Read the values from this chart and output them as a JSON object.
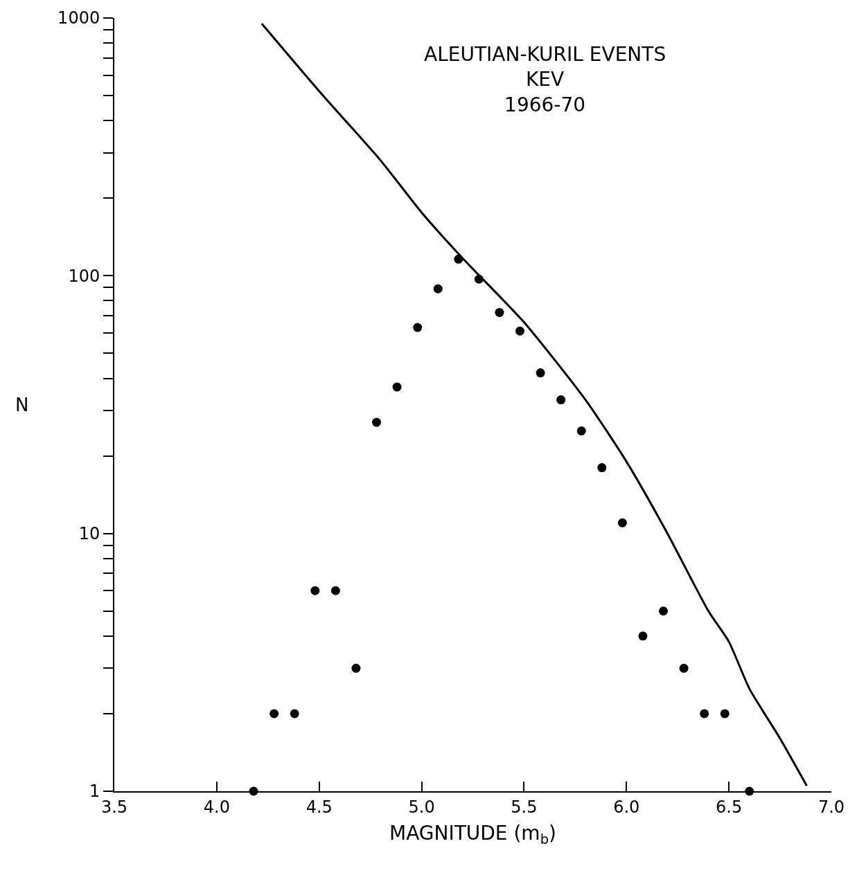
{
  "chart_data": {
    "type": "scatter",
    "title": "ALEUTIAN-KURIL EVENTS\nKEV\n1966-70",
    "xlabel": "MAGNITUDE (m$_{b}$)",
    "ylabel": "N",
    "log": "y",
    "marker": "circle",
    "series": [
      {
        "color": "#000000",
        "x": [
          4.18,
          4.28,
          4.38,
          4.48,
          4.58,
          4.68,
          4.78,
          4.88,
          4.98,
          5.08,
          5.18,
          5.28,
          5.38,
          5.48,
          5.58,
          5.68,
          5.78,
          5.88,
          5.98,
          6.08,
          6.18,
          6.28,
          6.38,
          6.48,
          6.6
        ],
        "values": [
          1,
          2,
          2,
          6,
          6,
          3,
          27,
          37,
          63,
          89,
          116,
          97,
          72,
          61,
          42,
          33,
          25,
          18,
          11,
          4,
          5,
          3,
          2,
          2,
          1
        ]
      },
      {
        "type": "line",
        "color": "#000000",
        "marker": "none",
        "line_style": "solid",
        "x": [
          4.22,
          4.5,
          4.8,
          5.0,
          5.2,
          5.5,
          5.8,
          6.0,
          6.2,
          6.4,
          6.5,
          6.6,
          6.75,
          6.88
        ],
        "values": [
          950,
          520,
          280,
          176,
          117,
          66,
          33,
          19,
          10,
          5,
          3.8,
          2.5,
          1.6,
          1.05
        ]
      }
    ],
    "xlim": [
      3.5,
      7.0
    ],
    "xticks": [
      {
        "value": 3.5,
        "label": "3.5"
      },
      {
        "value": 4.0,
        "label": "4.0"
      },
      {
        "value": 4.5,
        "label": "4.5"
      },
      {
        "value": 5.0,
        "label": "5.0"
      },
      {
        "value": 5.5,
        "label": "5.5"
      },
      {
        "value": 6.0,
        "label": "6.0"
      },
      {
        "value": 6.5,
        "label": "6.5"
      },
      {
        "value": 7.0,
        "label": "7.0"
      }
    ],
    "ylim": [
      1,
      1000
    ],
    "yticks": [
      1,
      {
        "value": 2,
        "label": null
      },
      {
        "value": 3,
        "label": null
      },
      {
        "value": 4,
        "label": null
      },
      {
        "value": 5,
        "label": null
      },
      {
        "value": 6,
        "label": null
      },
      {
        "value": 7,
        "label": null
      },
      {
        "value": 8,
        "label": null
      },
      {
        "value": 9,
        "label": null
      },
      10,
      {
        "value": 20,
        "label": null
      },
      {
        "value": 30,
        "label": null
      },
      {
        "value": 40,
        "label": null
      },
      {
        "value": 50,
        "label": null
      },
      {
        "value": 60,
        "label": null
      },
      {
        "value": 70,
        "label": null
      },
      {
        "value": 80,
        "label": null
      },
      {
        "value": 90,
        "label": null
      },
      100,
      {
        "value": 200,
        "label": null
      },
      {
        "value": 300,
        "label": null
      },
      {
        "value": 400,
        "label": null
      },
      {
        "value": 500,
        "label": null
      },
      {
        "value": 600,
        "label": null
      },
      {
        "value": 700,
        "label": null
      },
      {
        "value": 800,
        "label": null
      },
      {
        "value": 900,
        "label": null
      },
      1000
    ]
  }
}
